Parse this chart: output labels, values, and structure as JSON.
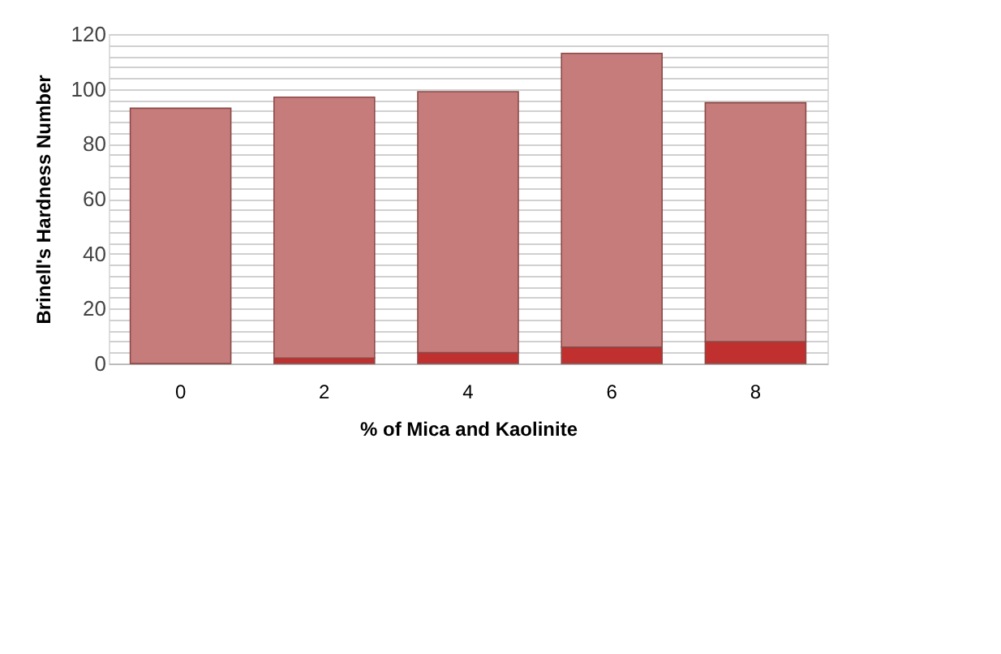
{
  "chart_data": {
    "type": "bar",
    "stacked": true,
    "xlabel": "% of Mica and Kaolinite",
    "ylabel": "Brinell's Hardness Number",
    "categories": [
      "0",
      "2",
      "4",
      "6",
      "8"
    ],
    "series": [
      {
        "color": "#c0302e",
        "values": [
          0,
          2,
          4,
          6,
          8
        ]
      },
      {
        "color": "#c67c7a",
        "values": [
          93,
          95,
          95,
          107,
          87
        ]
      }
    ],
    "ylim": [
      0,
      120
    ],
    "yticks": [
      0,
      {
        "value": 4,
        "label": null
      },
      {
        "value": 8,
        "label": null
      },
      {
        "value": 12,
        "label": null
      },
      {
        "value": 16,
        "label": null
      },
      20,
      {
        "value": 24,
        "label": null
      },
      {
        "value": 28,
        "label": null
      },
      {
        "value": 32,
        "label": null
      },
      {
        "value": 36,
        "label": null
      },
      40,
      {
        "value": 44,
        "label": null
      },
      {
        "value": 48,
        "label": null
      },
      {
        "value": 52,
        "label": null
      },
      {
        "value": 56,
        "label": null
      },
      60,
      {
        "value": 64,
        "label": null
      },
      {
        "value": 68,
        "label": null
      },
      {
        "value": 72,
        "label": null
      },
      {
        "value": 76,
        "label": null
      },
      80,
      {
        "value": 84,
        "label": null
      },
      {
        "value": 88,
        "label": null
      },
      {
        "value": 92,
        "label": null
      },
      {
        "value": 96,
        "label": null
      },
      100,
      {
        "value": 104,
        "label": null
      },
      {
        "value": 108,
        "label": null
      },
      {
        "value": 112,
        "label": null
      },
      {
        "value": 116,
        "label": null
      },
      120
    ],
    "grid": "y",
    "legend": false
  }
}
